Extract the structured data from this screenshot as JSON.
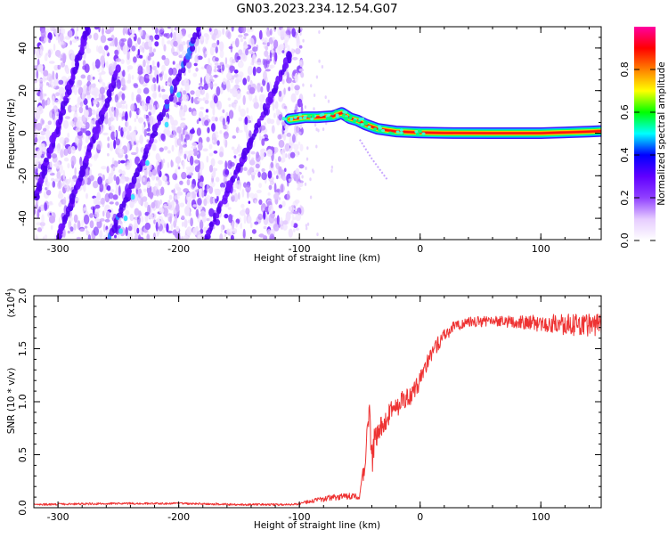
{
  "figure": {
    "title": "GN03.2023.234.12.54.G07"
  },
  "chart_data": [
    {
      "type": "heatmap",
      "title": "GN03.2023.234.12.54.G07",
      "xlabel": "Height of straight line (km)",
      "ylabel": "Frequency (Hz)",
      "xlim": [
        -320,
        150
      ],
      "ylim": [
        -50,
        50
      ],
      "xticks": [
        -300,
        -200,
        -100,
        0,
        100
      ],
      "xtick_labels": [
        "-300",
        "-200",
        "-100",
        "0",
        "100"
      ],
      "yticks": [
        -40,
        -20,
        0,
        20,
        40
      ],
      "ytick_labels": [
        "-40",
        "-20",
        "0",
        "20",
        "40"
      ],
      "colorbar": {
        "label": "Normalized spectral amplitude",
        "range": [
          0,
          1
        ],
        "ticks": [
          0.0,
          0.2,
          0.4,
          0.6,
          0.8
        ],
        "tick_labels": [
          "0.0",
          "0.2",
          "0.4",
          "0.6",
          "0.8"
        ],
        "colors": [
          "#ffffff",
          "#e6ccff",
          "#9040ff",
          "#6000ff",
          "#0000ff",
          "#00ffff",
          "#00ff00",
          "#ffff00",
          "#ff8000",
          "#ff0000",
          "#ff00a0"
        ]
      },
      "noise_region_x": [
        -320,
        -102
      ],
      "noise_streaks": [
        {
          "x_start": -258,
          "y_start": -50,
          "x_end": -182,
          "y_end": 50
        },
        {
          "x_start": -178,
          "y_start": -50,
          "x_end": -108,
          "y_end": 36
        },
        {
          "x_start": -318,
          "y_start": -30,
          "x_end": -275,
          "y_end": 50
        },
        {
          "x_start": -300,
          "y_start": -50,
          "x_end": -250,
          "y_end": 30
        }
      ],
      "signal_track": [
        {
          "x": -108,
          "y": 6.5
        },
        {
          "x": -95,
          "y": 7.5
        },
        {
          "x": -85,
          "y": 7.5
        },
        {
          "x": -72,
          "y": 8
        },
        {
          "x": -65,
          "y": 9.5
        },
        {
          "x": -58,
          "y": 7
        },
        {
          "x": -52,
          "y": 6
        },
        {
          "x": -45,
          "y": 4
        },
        {
          "x": -35,
          "y": 2
        },
        {
          "x": -20,
          "y": 0.8
        },
        {
          "x": 0,
          "y": 0.3
        },
        {
          "x": 20,
          "y": 0.1
        },
        {
          "x": 60,
          "y": 0
        },
        {
          "x": 100,
          "y": 0
        },
        {
          "x": 140,
          "y": 0.7
        },
        {
          "x": 150,
          "y": 1
        }
      ],
      "faint_trace": [
        {
          "x": -50,
          "y": -3
        },
        {
          "x": -40,
          "y": -12
        },
        {
          "x": -27,
          "y": -22
        }
      ]
    },
    {
      "type": "line",
      "xlabel": "Height of straight line (km)",
      "ylabel": "SNR (10 * v/v)",
      "y_multiplier": "(x10",
      "y_multiplier_exp": "4",
      "y_multiplier_close": ")",
      "xlim": [
        -320,
        150
      ],
      "ylim": [
        0,
        2.0
      ],
      "xticks": [
        -300,
        -200,
        -100,
        0,
        100
      ],
      "xtick_labels": [
        "-300",
        "-200",
        "-100",
        "0",
        "100"
      ],
      "yticks": [
        0.0,
        0.5,
        1.0,
        1.5,
        2.0
      ],
      "ytick_labels": [
        "0.0",
        "0.5",
        "1.0",
        "1.5",
        "2.0"
      ],
      "series_color": "#ee3333",
      "series": [
        {
          "x": [
            -320,
            -250,
            -200,
            -150,
            -105,
            -90,
            -75,
            -60,
            -50,
            -45,
            -42,
            -40,
            -38,
            -35,
            -30,
            -25,
            -20,
            -15,
            -10,
            -5,
            0,
            5,
            10,
            15,
            20,
            25,
            30,
            40,
            60,
            80,
            100,
            120,
            140,
            150
          ],
          "y": [
            0.03,
            0.04,
            0.04,
            0.03,
            0.03,
            0.06,
            0.09,
            0.11,
            0.1,
            0.5,
            0.95,
            0.45,
            0.6,
            0.75,
            0.8,
            0.9,
            0.95,
            1.0,
            1.05,
            1.1,
            1.2,
            1.35,
            1.45,
            1.55,
            1.62,
            1.68,
            1.72,
            1.75,
            1.76,
            1.75,
            1.74,
            1.73,
            1.72,
            1.72
          ],
          "noise_amplitude": [
            0.01,
            0.01,
            0.01,
            0.01,
            0.01,
            0.02,
            0.03,
            0.03,
            0.03,
            0.12,
            0.15,
            0.15,
            0.15,
            0.12,
            0.1,
            0.1,
            0.1,
            0.1,
            0.1,
            0.1,
            0.08,
            0.08,
            0.07,
            0.07,
            0.06,
            0.06,
            0.05,
            0.05,
            0.05,
            0.06,
            0.08,
            0.1,
            0.11,
            0.11
          ]
        }
      ]
    }
  ]
}
